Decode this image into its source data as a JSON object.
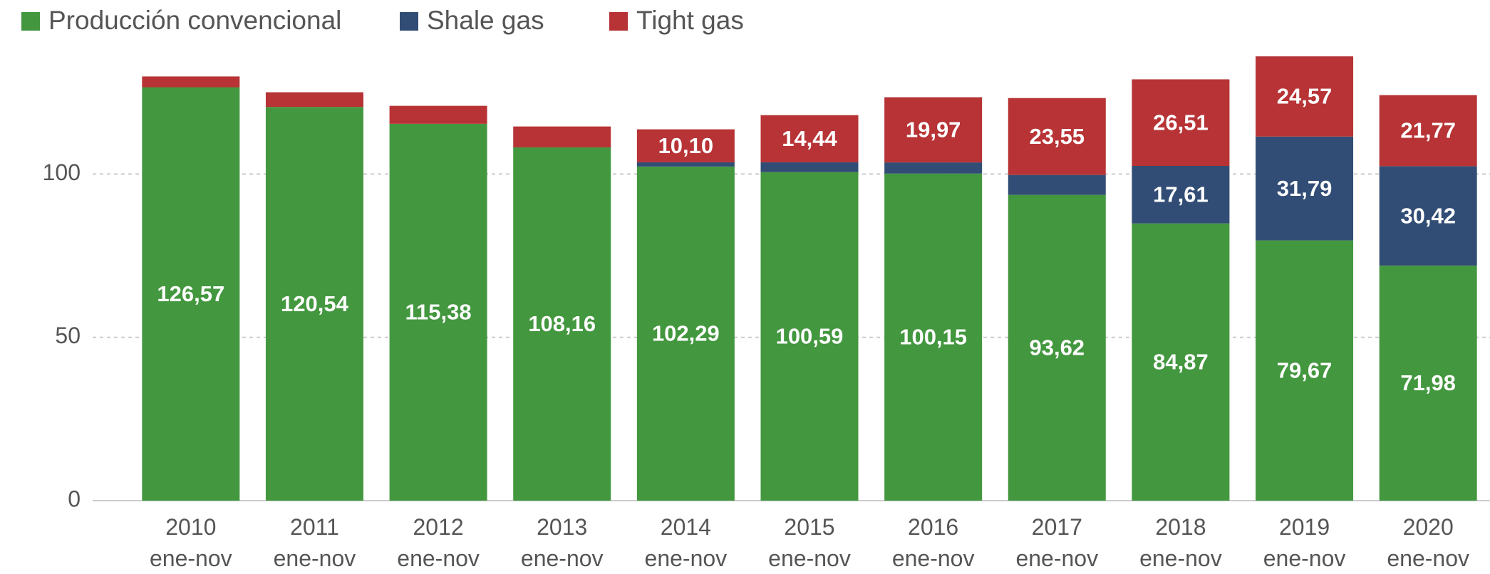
{
  "chart_data": {
    "type": "stacked_bar",
    "categories": [
      "2010 ene-nov",
      "2011 ene-nov",
      "2012 ene-nov",
      "2013 ene-nov",
      "2014 ene-nov",
      "2015 ene-nov",
      "2016 ene-nov",
      "2017 ene-nov",
      "2018 ene-nov",
      "2019 ene-nov",
      "2020 ene-nov"
    ],
    "series": [
      {
        "name": "Producción convencional",
        "color": "#43973f",
        "values": [
          126.57,
          120.54,
          115.38,
          108.16,
          102.29,
          100.59,
          100.15,
          93.62,
          84.87,
          79.67,
          71.98
        ],
        "value_labels": [
          "126,57",
          "120,54",
          "115,38",
          "108,16",
          "102,29",
          "100,59",
          "100,15",
          "93,62",
          "84,87",
          "79,67",
          "71,98"
        ]
      },
      {
        "name": "Shale gas",
        "color": "#324d75",
        "values": [
          0,
          0,
          0,
          0,
          1.3,
          3.0,
          3.4,
          6.1,
          17.61,
          31.79,
          30.42
        ],
        "value_labels": [
          null,
          null,
          null,
          null,
          null,
          null,
          null,
          null,
          "17,61",
          "31,79",
          "30,42"
        ]
      },
      {
        "name": "Tight gas",
        "color": "#b73335",
        "values": [
          3.3,
          4.5,
          5.5,
          6.4,
          10.1,
          14.44,
          19.97,
          23.55,
          26.51,
          24.57,
          21.77
        ],
        "value_labels": [
          null,
          null,
          null,
          null,
          "10,10",
          "14,44",
          "19,97",
          "23,55",
          "26,51",
          "24,57",
          "21,77"
        ]
      }
    ],
    "ylim": [
      0,
      145
    ],
    "yticks": [
      0,
      50,
      100
    ],
    "grid": true,
    "legend": "top-left"
  }
}
